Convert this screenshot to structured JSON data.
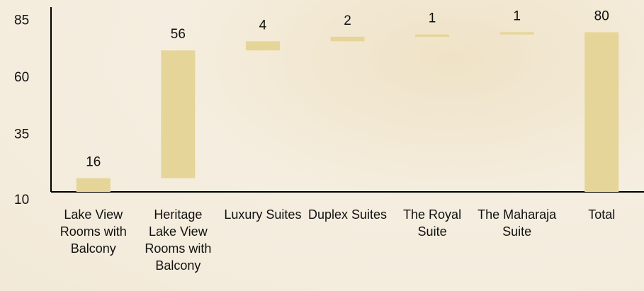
{
  "chart_data": {
    "type": "waterfall",
    "categories": [
      "Lake View Rooms with Balcony",
      "Heritage Lake View Rooms with Balcony",
      "Luxury Suites",
      "Duplex Suites",
      "The Royal Suite",
      "The Maharaja Suite",
      "Total"
    ],
    "values": [
      16,
      56,
      4,
      2,
      1,
      1,
      80
    ],
    "total_index": 6,
    "color": "#e6d598",
    "ylim": [
      10,
      91
    ],
    "yticks": [
      10,
      35,
      60,
      85
    ],
    "grid": false
  }
}
